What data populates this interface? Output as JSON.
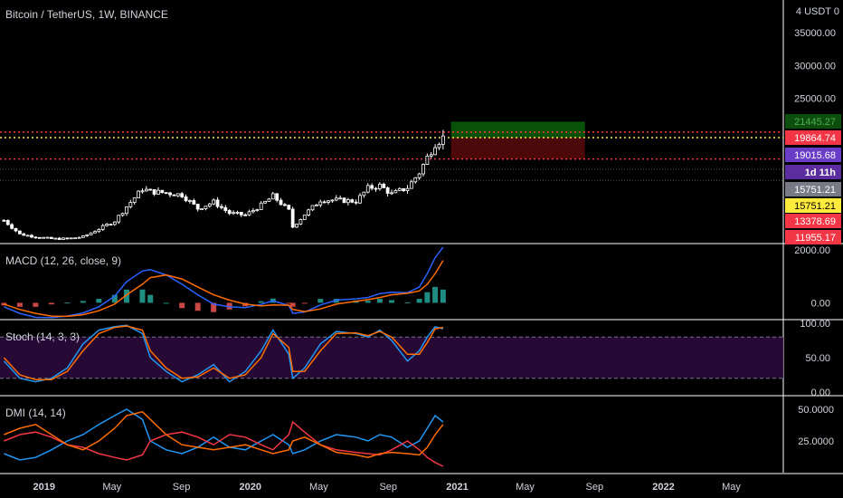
{
  "header": {
    "symbol_title": "Bitcoin / TetherUS, 1W, BINANCE",
    "currency": "USDT",
    "scale_corner": "4",
    "top_right_value": "0"
  },
  "colors": {
    "background": "#000000",
    "up_candle": "#ffffff",
    "down_candle": "#ffffff",
    "red_line": "#f23645",
    "yellow_line": "#ffeb3b",
    "target_zone": "#0a5e0a",
    "stop_zone": "#5a0a0a",
    "macd_line": "#2962ff",
    "signal_line": "#ff6d00",
    "stoch_k": "#2196f3",
    "stoch_d": "#ff6d00",
    "stoch_band": "#2a0a3a",
    "dmi_plus": "#2196f3",
    "dmi_minus": "#f23645",
    "adx": "#ff6d00"
  },
  "price_axis": {
    "labels": [
      "35000.00",
      "30000.00",
      "25000.00"
    ],
    "badges": [
      {
        "text": "21445.27",
        "bg": "#0d4d0d",
        "fg": "#4caf50"
      },
      {
        "text": "19864.74",
        "bg": "#f23645",
        "fg": "#ffffff"
      },
      {
        "text": "19015.68",
        "bg": "#6a3dc8",
        "fg": "#ffffff"
      },
      {
        "text": "1d 11h",
        "bg": "#5b2d9e",
        "fg": "#ffffff"
      },
      {
        "text": "15751.21",
        "bg": "#787b86",
        "fg": "#ffffff"
      },
      {
        "text": "15751.21",
        "bg": "#ffeb3b",
        "fg": "#000000"
      },
      {
        "text": "13378.69",
        "bg": "#f23645",
        "fg": "#ffffff"
      },
      {
        "text": "11955.17",
        "bg": "#f23645",
        "fg": "#ffffff"
      }
    ]
  },
  "time_axis": [
    "2019",
    "May",
    "Sep",
    "2020",
    "May",
    "Sep",
    "2021",
    "May",
    "Sep",
    "2022",
    "May"
  ],
  "indicators": {
    "macd": {
      "title": "MACD (12, 26, close, 9)",
      "axis": [
        "2000.00",
        "0.00"
      ]
    },
    "stoch": {
      "title": "Stoch (14, 3, 3)",
      "axis": [
        "100.00",
        "50.00",
        "0.00"
      ]
    },
    "dmi": {
      "title": "DMI (14, 14)",
      "axis": [
        "50.0000",
        "25.0000"
      ]
    }
  },
  "chart_data": [
    {
      "type": "candlestick",
      "title": "Bitcoin / TetherUS, 1W, BINANCE",
      "ylim": [
        3000,
        40000
      ],
      "xlim": [
        "2018-10-15",
        "2022-08-01"
      ],
      "levels": [
        {
          "name": "upper",
          "value": 19864.74
        },
        {
          "name": "current",
          "value": 19015.68
        },
        {
          "name": "lower",
          "value": 15751.21
        }
      ],
      "target_zone": [
        19015.68,
        21445.27
      ],
      "stop_zone": [
        15751.21,
        19015.68
      ],
      "close_series": [
        [
          "2018-10-22",
          6400
        ],
        [
          "2018-11-19",
          4300
        ],
        [
          "2018-12-17",
          3900
        ],
        [
          "2019-01-14",
          3600
        ],
        [
          "2019-02-11",
          3600
        ],
        [
          "2019-03-11",
          3900
        ],
        [
          "2019-04-08",
          5100
        ],
        [
          "2019-05-06",
          6300
        ],
        [
          "2019-05-27",
          8500
        ],
        [
          "2019-06-24",
          11200
        ],
        [
          "2019-07-08",
          10800
        ],
        [
          "2019-08-05",
          10600
        ],
        [
          "2019-09-02",
          10300
        ],
        [
          "2019-09-30",
          8200
        ],
        [
          "2019-10-28",
          9200
        ],
        [
          "2019-11-25",
          7500
        ],
        [
          "2019-12-23",
          7200
        ],
        [
          "2020-01-20",
          8700
        ],
        [
          "2020-02-10",
          10100
        ],
        [
          "2020-03-09",
          7900
        ],
        [
          "2020-03-16",
          5400
        ],
        [
          "2020-04-06",
          7300
        ],
        [
          "2020-05-04",
          9500
        ],
        [
          "2020-06-01",
          9500
        ],
        [
          "2020-07-06",
          9300
        ],
        [
          "2020-07-27",
          11300
        ],
        [
          "2020-08-17",
          11700
        ],
        [
          "2020-09-07",
          10400
        ],
        [
          "2020-10-05",
          11400
        ],
        [
          "2020-10-26",
          13700
        ],
        [
          "2020-11-09",
          16000
        ],
        [
          "2020-11-23",
          18200
        ],
        [
          "2020-12-07",
          19015.68
        ]
      ]
    },
    {
      "type": "line",
      "title": "MACD (12, 26, close, 9)",
      "ylim": [
        -600,
        2200
      ],
      "series": [
        {
          "values": [
            -150,
            -400,
            -550,
            -560,
            -500,
            -380,
            -150,
            250,
            800,
            1200,
            1250,
            1050,
            700,
            300,
            -50,
            -150,
            -180,
            -60,
            80,
            -100,
            -400,
            -350,
            -80,
            100,
            150,
            200,
            350,
            400,
            380,
            600,
            1100,
            1700,
            2100
          ]
        },
        {
          "values": [
            -50,
            -250,
            -400,
            -500,
            -510,
            -450,
            -300,
            -50,
            300,
            700,
            950,
            1050,
            900,
            600,
            300,
            100,
            -50,
            -120,
            -80,
            -90,
            -250,
            -330,
            -230,
            -50,
            60,
            120,
            200,
            300,
            360,
            450,
            700,
            1100,
            1600
          ]
        }
      ]
    },
    {
      "type": "line",
      "title": "Stoch (14, 3, 3)",
      "ylim": [
        0,
        100
      ],
      "series": [
        {
          "values": [
            45,
            20,
            15,
            20,
            35,
            70,
            90,
            95,
            97,
            85,
            50,
            30,
            15,
            25,
            40,
            15,
            30,
            60,
            90,
            55,
            20,
            35,
            70,
            88,
            85,
            80,
            90,
            75,
            45,
            60,
            80,
            95,
            92
          ]
        },
        {
          "values": [
            50,
            25,
            18,
            18,
            30,
            60,
            85,
            94,
            96,
            90,
            60,
            35,
            20,
            22,
            35,
            20,
            25,
            50,
            85,
            65,
            30,
            30,
            60,
            85,
            86,
            82,
            88,
            80,
            55,
            55,
            72,
            92,
            94
          ]
        }
      ]
    },
    {
      "type": "line",
      "title": "DMI (14, 14)",
      "ylim": [
        0,
        60
      ],
      "series": [
        {
          "values": [
            15,
            10,
            12,
            18,
            25,
            30,
            38,
            45,
            50,
            42,
            25,
            18,
            15,
            20,
            28,
            20,
            18,
            25,
            30,
            22,
            15,
            18,
            25,
            30,
            28,
            25,
            30,
            28,
            20,
            25,
            35,
            45,
            40
          ]
        },
        {
          "values": [
            25,
            30,
            32,
            28,
            22,
            20,
            15,
            12,
            10,
            14,
            25,
            30,
            32,
            28,
            22,
            30,
            28,
            22,
            18,
            30,
            40,
            32,
            22,
            18,
            16,
            15,
            14,
            18,
            25,
            18,
            12,
            8,
            5
          ]
        },
        {
          "values": [
            30,
            35,
            38,
            30,
            22,
            18,
            25,
            35,
            45,
            48,
            42,
            30,
            22,
            20,
            18,
            20,
            22,
            18,
            15,
            18,
            25,
            28,
            22,
            16,
            14,
            12,
            15,
            16,
            15,
            14,
            20,
            30,
            38
          ]
        }
      ]
    }
  ]
}
